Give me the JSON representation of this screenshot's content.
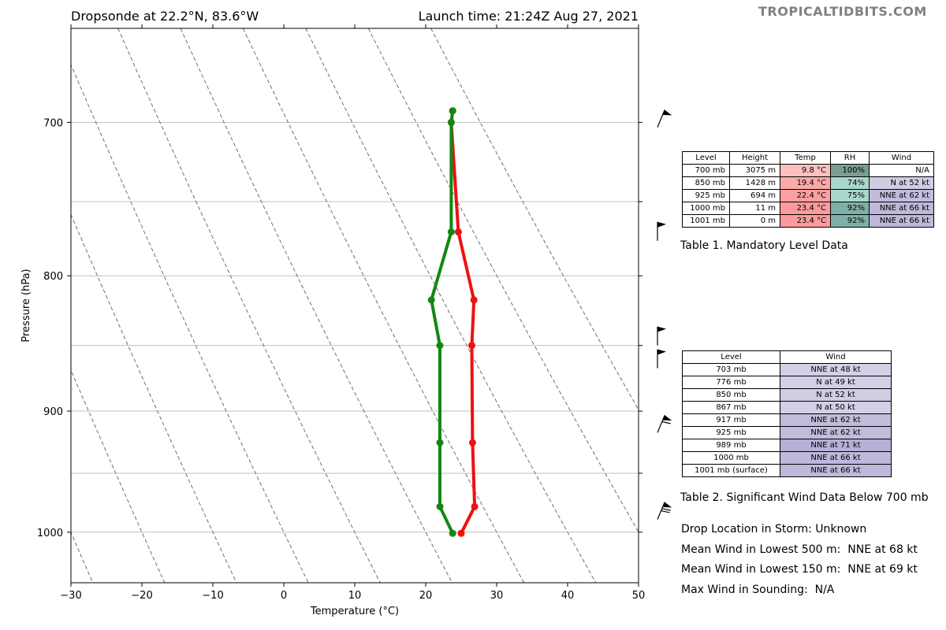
{
  "header": {
    "title_left": "Dropsonde at 22.2°N, 83.6°W",
    "title_right": "Launch time: 21:24Z Aug 27, 2021",
    "brand": "TROPICALTIDBITS.COM"
  },
  "chart_data": {
    "type": "line",
    "xlabel": "Temperature (°C)",
    "ylabel": "Pressure (hPa)",
    "xlim": [
      -30,
      50
    ],
    "ylim": [
      1045,
      645
    ],
    "y_scale": "log",
    "x_ticks": [
      -30,
      -20,
      -10,
      0,
      10,
      20,
      30,
      40,
      50
    ],
    "x_tick_labels": [
      "−30",
      "−20",
      "−10",
      "0",
      "10",
      "20",
      "30",
      "40",
      "50"
    ],
    "y_ticks": [
      700,
      800,
      900,
      1000
    ],
    "y_tick_labels": [
      "700",
      "800",
      "900",
      "1000"
    ],
    "y_gridlines": [
      700,
      750,
      800,
      850,
      900,
      950,
      1000
    ],
    "dry_adiabat_surface_temps": [
      -40,
      -30,
      -20,
      -10,
      0,
      10,
      20,
      30,
      40,
      50,
      60
    ],
    "series": [
      {
        "role": "temperature",
        "color": "#ee1111",
        "p": [
          693,
          700,
          770,
          817,
          850,
          925,
          978,
          1001
        ],
        "t": [
          23.8,
          23.6,
          24.6,
          26.8,
          26.5,
          26.6,
          26.9,
          25.0
        ]
      },
      {
        "role": "dewpoint",
        "color": "#118811",
        "p": [
          693,
          700,
          770,
          817,
          850,
          925,
          978,
          1001
        ],
        "t": [
          23.8,
          23.6,
          23.6,
          20.8,
          22.0,
          22.0,
          22.0,
          23.8
        ]
      }
    ],
    "wind_barbs": [
      {
        "p": 703,
        "dir": "NNE",
        "speed_kt": 48
      },
      {
        "p": 776,
        "dir": "N",
        "speed_kt": 49
      },
      {
        "p": 850,
        "dir": "N",
        "speed_kt": 52
      },
      {
        "p": 867,
        "dir": "N",
        "speed_kt": 50
      },
      {
        "p": 917,
        "dir": "NNE",
        "speed_kt": 62
      },
      {
        "p": 989,
        "dir": "NNE",
        "speed_kt": 71
      }
    ],
    "grid": true
  },
  "colors": {
    "temp_line": "#ee1111",
    "dewpoint_line": "#118811",
    "gridline": "#c0c0c0",
    "adiabat": "#707070"
  },
  "table1": {
    "headers": [
      "Level",
      "Height",
      "Temp",
      "RH",
      "Wind"
    ],
    "rows": [
      {
        "level": "700 mb",
        "height": "3075 m",
        "temp": "9.8 °C",
        "rh": "100%",
        "wind": "N/A",
        "temp_color": "#fbc0c0",
        "rh_color": "#7c9e90",
        "wind_color": "#ffffff"
      },
      {
        "level": "850 mb",
        "height": "1428 m",
        "temp": "19.4 °C",
        "rh": "74%",
        "wind": "N at 52 kt",
        "temp_color": "#fbaaaa",
        "rh_color": "#a8d8cc",
        "wind_color": "#cfcce4"
      },
      {
        "level": "925 mb",
        "height": "694 m",
        "temp": "22.4 °C",
        "rh": "75%",
        "wind": "NNE at 62 kt",
        "temp_color": "#fb9f9f",
        "rh_color": "#a8d8cc",
        "wind_color": "#c1bcdc"
      },
      {
        "level": "1000 mb",
        "height": "11 m",
        "temp": "23.4 °C",
        "rh": "92%",
        "wind": "NNE at 66 kt",
        "temp_color": "#fb9b9b",
        "rh_color": "#7fb0a8",
        "wind_color": "#bfb8da"
      },
      {
        "level": "1001 mb",
        "height": "0 m",
        "temp": "23.4 °C",
        "rh": "92%",
        "wind": "NNE at 66 kt",
        "temp_color": "#fb9b9b",
        "rh_color": "#7fb0a8",
        "wind_color": "#bfb8da"
      }
    ],
    "caption": "Table 1. Mandatory Level Data"
  },
  "table2": {
    "headers": [
      "Level",
      "Wind"
    ],
    "rows": [
      {
        "level": "703 mb",
        "wind": "NNE at 48 kt",
        "wind_color": "#d2cfe6"
      },
      {
        "level": "776 mb",
        "wind": "N at 49 kt",
        "wind_color": "#d2cfe6"
      },
      {
        "level": "850 mb",
        "wind": "N at 52 kt",
        "wind_color": "#cfcce4"
      },
      {
        "level": "867 mb",
        "wind": "N at 50 kt",
        "wind_color": "#d2cfe6"
      },
      {
        "level": "917 mb",
        "wind": "NNE at 62 kt",
        "wind_color": "#c1bcdc"
      },
      {
        "level": "925 mb",
        "wind": "NNE at 62 kt",
        "wind_color": "#c1bcdc"
      },
      {
        "level": "989 mb",
        "wind": "NNE at 71 kt",
        "wind_color": "#b7afd6"
      },
      {
        "level": "1000 mb",
        "wind": "NNE at 66 kt",
        "wind_color": "#bfb8da"
      },
      {
        "level": "1001 mb (surface)",
        "wind": "NNE at 66 kt",
        "wind_color": "#bfb8da"
      }
    ],
    "caption": "Table 2. Significant Wind Data Below 700 mb"
  },
  "stats": {
    "drop_location": "Drop Location in Storm: Unknown",
    "mean_500": "Mean Wind in Lowest 500 m:  NNE at 68 kt",
    "mean_150": "Mean Wind in Lowest 150 m:  NNE at 69 kt",
    "max_wind": "Max Wind in Sounding:  N/A"
  }
}
